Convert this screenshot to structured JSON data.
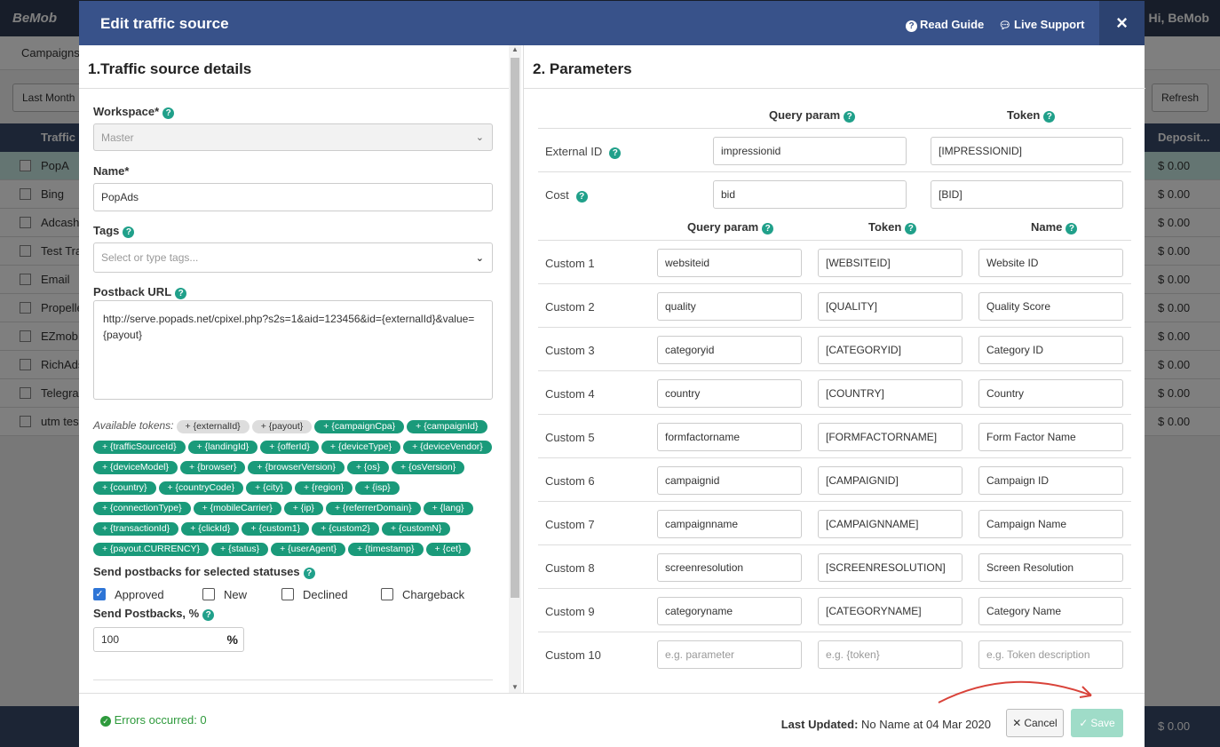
{
  "app": {
    "logo": "BeMob",
    "user": "Hi, BeMob",
    "subnav": "Campaigns",
    "date_btn": "Last Month",
    "refresh": "Refresh"
  },
  "table": {
    "header": "Traffic S",
    "header_right": "Deposit...",
    "rows": [
      {
        "name": "PopA",
        "val": "$ 0.00"
      },
      {
        "name": "Bing",
        "val": "$ 0.00"
      },
      {
        "name": "Adcash",
        "val": "$ 0.00"
      },
      {
        "name": "Test Tra",
        "val": "$ 0.00"
      },
      {
        "name": "Email",
        "val": "$ 0.00"
      },
      {
        "name": "Propeller",
        "val": "$ 0.00"
      },
      {
        "name": "EZmob",
        "val": "$ 0.00"
      },
      {
        "name": "RichAds",
        "val": "$ 0.00"
      },
      {
        "name": "Telegram",
        "val": "$ 0.00"
      },
      {
        "name": "utm tes",
        "val": "$ 0.00"
      }
    ],
    "footer_val": "$ 0.00"
  },
  "modal": {
    "title": "Edit traffic source",
    "read_guide": "Read Guide",
    "live_support": "Live Support",
    "close": "×",
    "left_title": "1.Traffic source details",
    "workspace_label": "Workspace*",
    "workspace_value": "Master",
    "name_label": "Name*",
    "name_value": "PopAds",
    "tags_label": "Tags",
    "tags_placeholder": "Select or type tags...",
    "postback_label": "Postback URL",
    "postback_value": "http://serve.popads.net/cpixel.php?s2s=1&aid=123456&id={externalId}&value={payout}",
    "tokens_label": "Available tokens:",
    "tokens": [
      "+ {externalId}",
      "+ {payout}",
      "+ {campaignCpa}",
      "+ {campaignId}",
      "+ {trafficSourceId}",
      "+ {landingId}",
      "+ {offerId}",
      "+ {deviceType}",
      "+ {deviceVendor}",
      "+ {deviceModel}",
      "+ {browser}",
      "+ {browserVersion}",
      "+ {os}",
      "+ {osVersion}",
      "+ {country}",
      "+ {countryCode}",
      "+ {city}",
      "+ {region}",
      "+ {isp}",
      "+ {connectionType}",
      "+ {mobileCarrier}",
      "+ {ip}",
      "+ {referrerDomain}",
      "+ {lang}",
      "+ {transactionId}",
      "+ {clickId}",
      "+ {custom1}",
      "+ {custom2}",
      "+ {customN}",
      "+ {payout.CURRENCY}",
      "+ {status}",
      "+ {userAgent}",
      "+ {timestamp}",
      "+ {cet}"
    ],
    "statuses_label": "Send postbacks for selected statuses",
    "statuses": [
      {
        "label": "Approved",
        "checked": true
      },
      {
        "label": "New",
        "checked": false
      },
      {
        "label": "Declined",
        "checked": false
      },
      {
        "label": "Chargeback",
        "checked": false
      }
    ],
    "percent_label": "Send Postbacks, %",
    "percent_value": "100",
    "percent_sign": "%",
    "right_title": "2. Parameters",
    "col_query": "Query param",
    "col_token": "Token",
    "col_name": "Name",
    "fixed_rows": [
      {
        "label": "External ID",
        "query": "impressionid",
        "token": "[IMPRESSIONID]"
      },
      {
        "label": "Cost",
        "query": "bid",
        "token": "[BID]"
      }
    ],
    "custom_rows": [
      {
        "label": "Custom 1",
        "query": "websiteid",
        "token": "[WEBSITEID]",
        "name": "Website ID"
      },
      {
        "label": "Custom 2",
        "query": "quality",
        "token": "[QUALITY]",
        "name": "Quality Score"
      },
      {
        "label": "Custom 3",
        "query": "categoryid",
        "token": "[CATEGORYID]",
        "name": "Category ID"
      },
      {
        "label": "Custom 4",
        "query": "country",
        "token": "[COUNTRY]",
        "name": "Country"
      },
      {
        "label": "Custom 5",
        "query": "formfactorname",
        "token": "[FORMFACTORNAME]",
        "name": "Form Factor Name"
      },
      {
        "label": "Custom 6",
        "query": "campaignid",
        "token": "[CAMPAIGNID]",
        "name": "Campaign ID"
      },
      {
        "label": "Custom 7",
        "query": "campaignname",
        "token": "[CAMPAIGNNAME]",
        "name": "Campaign Name"
      },
      {
        "label": "Custom 8",
        "query": "screenresolution",
        "token": "[SCREENRESOLUTION]",
        "name": "Screen Resolution"
      },
      {
        "label": "Custom 9",
        "query": "categoryname",
        "token": "[CATEGORYNAME]",
        "name": "Category Name"
      },
      {
        "label": "Custom 10",
        "query": "e.g. parameter",
        "token": "e.g. {token}",
        "name": "e.g. Token description",
        "placeholder": true
      }
    ],
    "errors": "Errors occurred: 0",
    "last_updated_label": "Last Updated:",
    "last_updated_value": "No Name at 04 Mar 2020",
    "cancel": "Cancel",
    "save": "Save"
  },
  "colors": {
    "header": "#38528a",
    "accent": "#1a9a7a",
    "arrow": "#d9433a"
  }
}
